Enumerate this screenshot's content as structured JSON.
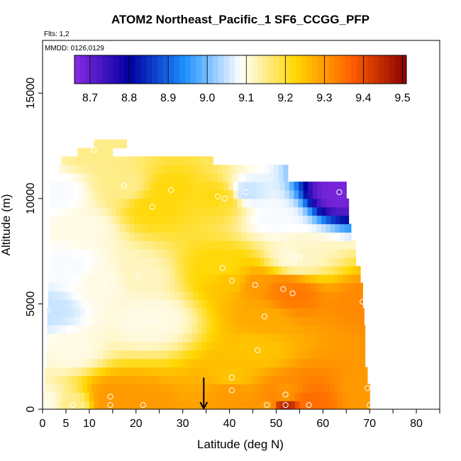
{
  "chart_data": {
    "type": "heatmap",
    "title": "ATOM2 Northeast_Pacific_1 SF6_CCGG_PFP",
    "subtitle_flights": "Flts: 1,2",
    "subtitle_dates": "MMDD: 0126,0129",
    "xlabel": "Latitude (deg N)",
    "ylabel": "Altitude (m)",
    "xlim": [
      0,
      85
    ],
    "ylim": [
      0,
      17500
    ],
    "x_ticks": [
      0,
      5,
      10,
      20,
      30,
      40,
      50,
      60,
      70,
      80
    ],
    "y_ticks": [
      0,
      5000,
      10000,
      15000
    ],
    "colorbar": {
      "min": 8.66,
      "max": 9.51,
      "ticks": [
        8.7,
        8.8,
        8.9,
        9.0,
        9.1,
        9.2,
        9.3,
        9.4,
        9.5
      ],
      "colors": [
        "#8a2be2",
        "#0000a0",
        "#1e90ff",
        "#ffffff",
        "#ffd700",
        "#ff6000",
        "#8b0000"
      ]
    },
    "curtain_extent": [
      {
        "alt": 200,
        "lat_min": 0,
        "lat_max": 70
      },
      {
        "alt": 700,
        "lat_min": 0.5,
        "lat_max": 70
      },
      {
        "alt": 1200,
        "lat_min": 0.5,
        "lat_max": 69.5
      },
      {
        "alt": 2000,
        "lat_min": 0.8,
        "lat_max": 69
      },
      {
        "alt": 3000,
        "lat_min": 1,
        "lat_max": 69
      },
      {
        "alt": 4000,
        "lat_min": 1,
        "lat_max": 68.8
      },
      {
        "alt": 5000,
        "lat_min": 1.2,
        "lat_max": 68.5
      },
      {
        "alt": 6000,
        "lat_min": 1.3,
        "lat_max": 68
      },
      {
        "alt": 7000,
        "lat_min": 1.5,
        "lat_max": 67
      },
      {
        "alt": 8000,
        "lat_min": 1.6,
        "lat_max": 66
      },
      {
        "alt": 9000,
        "lat_min": 1.7,
        "lat_max": 65.5
      },
      {
        "alt": 10000,
        "lat_min": 1.8,
        "lat_max": 65
      },
      {
        "alt": 10800,
        "lat_min": 3.5,
        "lat_max": 52.5
      },
      {
        "alt": 11500,
        "lat_min": 4,
        "lat_max": 36.5
      },
      {
        "alt": 12200,
        "lat_min": 7.5,
        "lat_max": 15
      },
      {
        "alt": 12600,
        "lat_min": 11,
        "lat_max": 18
      }
    ],
    "points": [
      {
        "lat": 0.5,
        "alt": 300,
        "value": 9.1
      },
      {
        "lat": 6.5,
        "alt": 200,
        "value": 9.15
      },
      {
        "lat": 14.5,
        "alt": 200,
        "value": 9.3
      },
      {
        "lat": 14.5,
        "alt": 600,
        "value": 9.3
      },
      {
        "lat": 21.5,
        "alt": 200,
        "value": 9.3
      },
      {
        "lat": 40.5,
        "alt": 900,
        "value": 9.3
      },
      {
        "lat": 40.5,
        "alt": 1500,
        "value": 9.25
      },
      {
        "lat": 48,
        "alt": 200,
        "value": 9.3
      },
      {
        "lat": 52,
        "alt": 200,
        "value": 9.45
      },
      {
        "lat": 52,
        "alt": 700,
        "value": 9.3
      },
      {
        "lat": 57,
        "alt": 200,
        "value": 9.35
      },
      {
        "lat": 70,
        "alt": 200,
        "value": 9.3
      },
      {
        "lat": 69.5,
        "alt": 1000,
        "value": 9.3
      },
      {
        "lat": 6,
        "alt": 2800,
        "value": 9.1
      },
      {
        "lat": 46,
        "alt": 2800,
        "value": 9.25
      },
      {
        "lat": 24,
        "alt": 4300,
        "value": 9.1
      },
      {
        "lat": 22.5,
        "alt": 4200,
        "value": 9.1
      },
      {
        "lat": 47.5,
        "alt": 4400,
        "value": 9.28
      },
      {
        "lat": 1,
        "alt": 4700,
        "value": 9.05
      },
      {
        "lat": 68.5,
        "alt": 5100,
        "value": 9.32
      },
      {
        "lat": 53.5,
        "alt": 5500,
        "value": 9.34
      },
      {
        "lat": 51.5,
        "alt": 5700,
        "value": 9.33
      },
      {
        "lat": 45.5,
        "alt": 5900,
        "value": 9.3
      },
      {
        "lat": 13,
        "alt": 6000,
        "value": 9.1
      },
      {
        "lat": 40.5,
        "alt": 6100,
        "value": 9.25
      },
      {
        "lat": 20.5,
        "alt": 6300,
        "value": 9.12
      },
      {
        "lat": 38.5,
        "alt": 6700,
        "value": 9.22
      },
      {
        "lat": 5.5,
        "alt": 6800,
        "value": 9.08
      },
      {
        "lat": 54,
        "alt": 7200,
        "value": 9.1
      },
      {
        "lat": 55,
        "alt": 7200,
        "value": 9.12
      },
      {
        "lat": 9,
        "alt": 8600,
        "value": 9.1
      },
      {
        "lat": 49.5,
        "alt": 9100,
        "value": 9.08
      },
      {
        "lat": 23.5,
        "alt": 9600,
        "value": 9.22
      },
      {
        "lat": 37.5,
        "alt": 10100,
        "value": 9.22
      },
      {
        "lat": 39,
        "alt": 10000,
        "value": 9.2
      },
      {
        "lat": 43.5,
        "alt": 10300,
        "value": 9.05
      },
      {
        "lat": 63.5,
        "alt": 10300,
        "value": 8.68
      },
      {
        "lat": 3,
        "alt": 10300,
        "value": 9.08
      },
      {
        "lat": 27.5,
        "alt": 10400,
        "value": 9.22
      },
      {
        "lat": 17.5,
        "alt": 10600,
        "value": 9.15
      },
      {
        "lat": 11,
        "alt": 12300,
        "value": 9.15
      }
    ],
    "annotation_arrow_lat": 34.5
  }
}
